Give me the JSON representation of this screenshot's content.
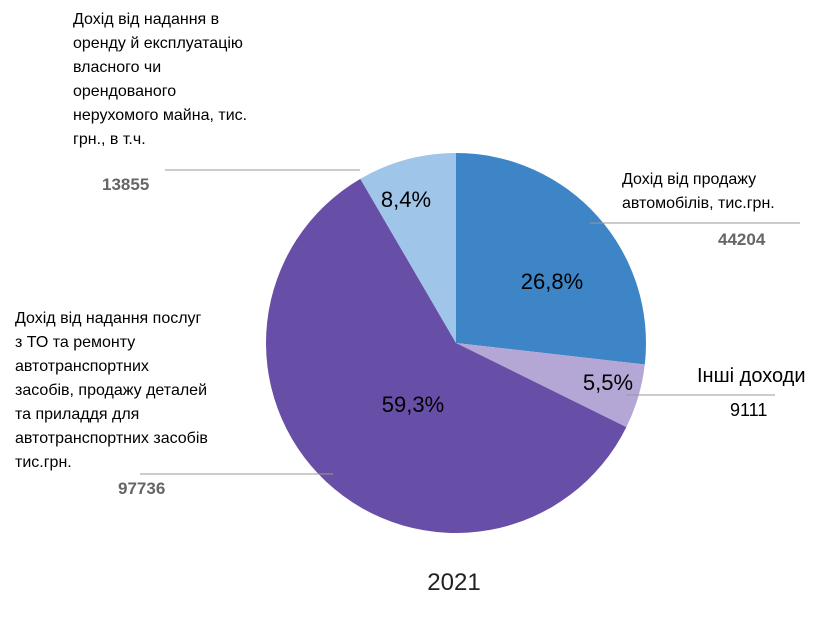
{
  "chart_data": {
    "type": "pie",
    "title": "2021",
    "categories": [
      "Дохід від продажу\nавтомобілів, тис.грн.",
      "Інші доходи",
      "Дохід від надання послуг\nз ТО та ремонту\nавтотранспортних\nзасобів, продажу деталей\nта приладдя для\nавтотранспортних засобів\nтис.грн.",
      "Дохід від надання в\nоренду й експлуатацію\nвласного чи\nорендованого\nнерухомого майна, тис.\nгрн., в т.ч."
    ],
    "values": [
      26.8,
      5.5,
      59.3,
      8.4
    ],
    "value_labels": [
      "26,8%",
      "5,5%",
      "59,3%",
      "8,4%"
    ],
    "amounts": [
      44204,
      9111,
      97736,
      13855
    ],
    "colors": [
      "#3d85c6",
      "#b4a7d6",
      "#674ea7",
      "#9fc5e8"
    ]
  }
}
